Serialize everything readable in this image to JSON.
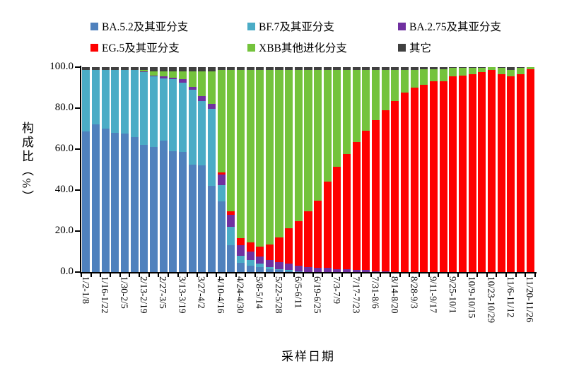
{
  "chart_data": {
    "type": "bar",
    "stacked": true,
    "percent": true,
    "title": "",
    "xlabel": "采样日期",
    "ylabel": "构成比（%）",
    "ylim": [
      0,
      100
    ],
    "y_ticks": [
      "0.0",
      "20.0",
      "40.0",
      "60.0",
      "80.0",
      "100.0"
    ],
    "grid": false,
    "legend_position": "top",
    "legend_columns": 3,
    "categories": [
      "1/2-1/8",
      "",
      "1/16-1/22",
      "",
      "1/30-2/5",
      "",
      "2/13-2/19",
      "",
      "2/27-3/5",
      "",
      "3/13-3/19",
      "",
      "3/27-4/2",
      "",
      "4/10-4/16",
      "",
      "4/24-4/30",
      "",
      "5/8-5/14",
      "",
      "5/22-5/28",
      "",
      "6/5-6/11",
      "",
      "6/19-6/25",
      "",
      "7/3-7/9",
      "",
      "7/17-7/23",
      "",
      "7/31-8/6",
      "",
      "8/14-8/20",
      "",
      "8/28-9/3",
      "",
      "9/11-9/17",
      "",
      "9/25-10/1",
      "",
      "10/9-10/15",
      "",
      "10/23-10/29",
      "",
      "11/6-11/12",
      "",
      "11/20-11/26"
    ],
    "series": [
      {
        "name": "BA.5.2及其亚分支",
        "color": "#4F81BD",
        "values": [
          68.5,
          72,
          70,
          68,
          67.5,
          66,
          62,
          61,
          64,
          59,
          58.5,
          52.5,
          52,
          42,
          34.5,
          13,
          4.5,
          3,
          2.5,
          1.5,
          1,
          0.5,
          0.5,
          0,
          0,
          0,
          0,
          0,
          0,
          0,
          0,
          0,
          0,
          0,
          0,
          0,
          0,
          0,
          0,
          0,
          0,
          0,
          0,
          0,
          0,
          0,
          0
        ]
      },
      {
        "name": "BF.7及其亚分支",
        "color": "#4BACC6",
        "values": [
          30,
          26.5,
          28.5,
          30.5,
          31,
          32.5,
          35.5,
          34.5,
          30.5,
          35,
          34,
          36.5,
          31.5,
          37.5,
          8,
          9,
          3.5,
          3,
          1.5,
          1,
          0.5,
          0.5,
          0,
          0,
          0,
          0,
          0,
          0,
          0,
          0,
          0,
          0,
          0,
          0,
          0,
          0,
          0,
          0,
          0,
          0,
          0,
          0,
          0,
          0,
          0,
          0,
          0
        ]
      },
      {
        "name": "BA.2.75及其亚分支",
        "color": "#7030A0",
        "values": [
          0,
          0,
          0,
          0,
          0,
          0,
          0.5,
          0.5,
          1,
          1,
          1.5,
          1.5,
          2.5,
          2.5,
          5,
          6,
          5,
          4,
          3.5,
          3.5,
          3.5,
          3,
          2.5,
          2.5,
          2,
          2,
          1.5,
          1.5,
          1,
          1,
          0.5,
          0.5,
          0,
          0,
          0,
          0,
          0,
          0,
          0,
          0,
          0,
          0,
          0,
          0,
          0,
          0,
          0
        ]
      },
      {
        "name": "EG.5及其亚分支",
        "color": "#FE0000",
        "values": [
          0,
          0,
          0,
          0,
          0,
          0,
          0,
          0,
          0,
          0,
          0,
          0,
          0,
          0,
          1,
          1.5,
          3.5,
          4.5,
          5,
          7.5,
          12,
          17.5,
          22,
          27,
          33,
          42,
          50,
          56,
          62.5,
          68,
          73.5,
          78.5,
          83.5,
          87.5,
          90,
          91.5,
          93,
          93,
          95.5,
          96,
          96.5,
          97.5,
          98.5,
          96.5,
          95.5,
          96.5,
          99
        ]
      },
      {
        "name": "XBB其他进化分支",
        "color": "#74C33C",
        "values": [
          0,
          0,
          0,
          0,
          0,
          0,
          0.5,
          2,
          2.5,
          3,
          4,
          7.5,
          12,
          16,
          50,
          69,
          82,
          84,
          86,
          85,
          81.5,
          77,
          73.5,
          69,
          63.5,
          54.5,
          47,
          41,
          35,
          29.5,
          24.5,
          19.5,
          15,
          11,
          8.5,
          7.5,
          6,
          6,
          4,
          3.5,
          3,
          2,
          1.5,
          3,
          3,
          3,
          1
        ]
      },
      {
        "name": "其它",
        "color": "#404040",
        "values": [
          1.5,
          1.5,
          1.5,
          1.5,
          1.5,
          1.5,
          1.5,
          2,
          2,
          2,
          2,
          2,
          2,
          2,
          1.5,
          1.5,
          1.5,
          1.5,
          1.5,
          1.5,
          1.5,
          1.5,
          1.5,
          1.5,
          1.5,
          1.5,
          1.5,
          1.5,
          1.5,
          1.5,
          1.5,
          1.5,
          1.5,
          1.5,
          1.5,
          1,
          1,
          1,
          0.5,
          0.5,
          0.5,
          0.5,
          0,
          0.5,
          1.5,
          0.5,
          0
        ]
      }
    ]
  }
}
